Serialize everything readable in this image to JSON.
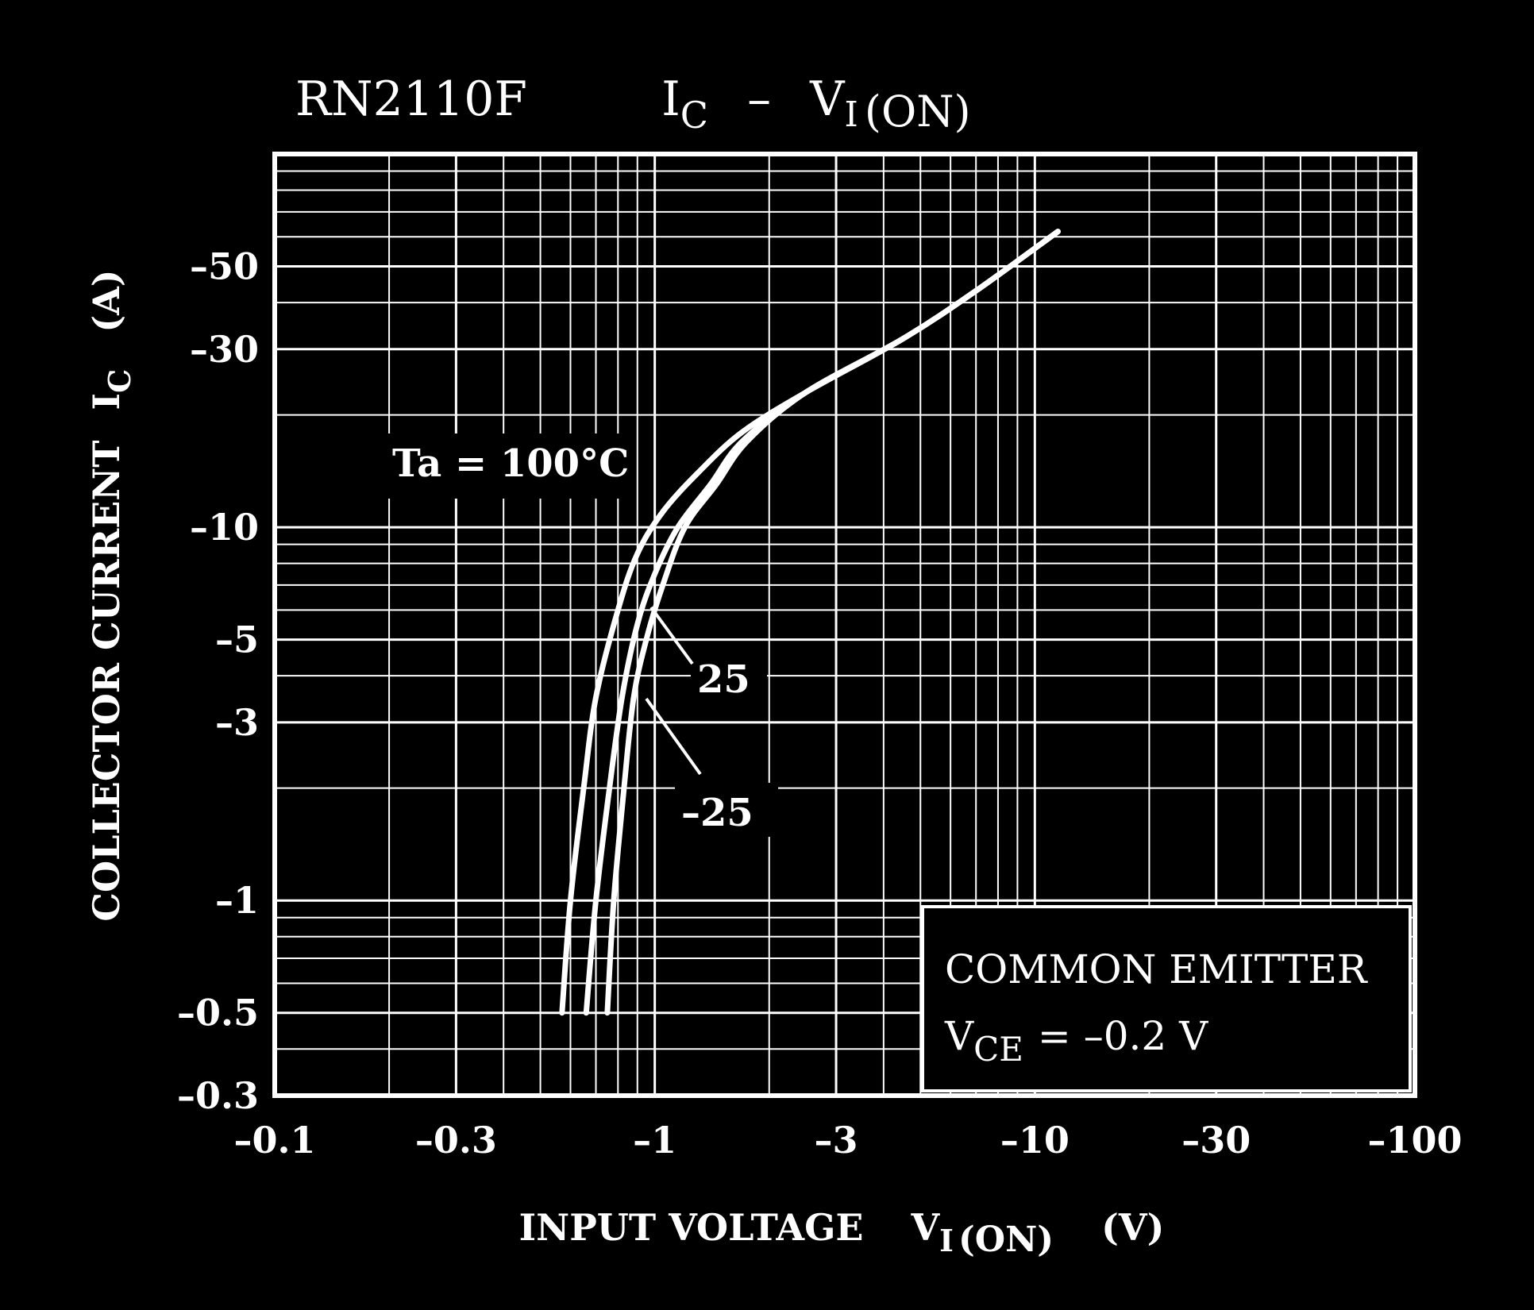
{
  "chart_data": {
    "type": "line",
    "title": {
      "part": "RN2110F",
      "symbol": "I",
      "symbol_sub": "C",
      "dash": "–",
      "symbol2": "V",
      "symbol2_sub": "I",
      "symbol2_suffix": "(ON)"
    },
    "xlabel": {
      "text": "INPUT  VOLTAGE",
      "symbol": "V",
      "sub": "I",
      "suffix": "(ON)",
      "unit": "(V)"
    },
    "ylabel": {
      "text": "COLLECTOR CURRENT",
      "symbol": "I",
      "sub": "C",
      "unit": "(A)"
    },
    "x_scale": "log",
    "y_scale": "log",
    "xlim": [
      -0.1,
      -100
    ],
    "ylim": [
      -0.3,
      -100
    ],
    "x_ticks": [
      -0.1,
      -0.3,
      -1,
      -3,
      -10,
      -30,
      -100
    ],
    "x_tick_labels": [
      "–0.1",
      "–0.3",
      "–1",
      "–3",
      "–10",
      "–30",
      "–100"
    ],
    "y_ticks": [
      -0.3,
      -0.5,
      -1,
      -3,
      -5,
      -10,
      -30,
      -50
    ],
    "y_tick_labels": [
      "–0.3",
      "–0.5",
      "–1",
      "–3",
      "–5",
      "–10",
      "–30",
      "–50"
    ],
    "grid": true,
    "series": [
      {
        "name": "100",
        "x": [
          -0.57,
          -0.6,
          -0.65,
          -0.7,
          -0.8,
          -0.9,
          -1.05,
          -1.3,
          -1.7,
          -2.5,
          -4.5,
          -7,
          -11.5
        ],
        "y": [
          -0.5,
          -1,
          -2,
          -3.5,
          -6,
          -8.5,
          -11,
          -14,
          -18,
          -23,
          -32,
          -43,
          -62
        ]
      },
      {
        "name": "25",
        "x": [
          -0.66,
          -0.7,
          -0.76,
          -0.82,
          -0.9,
          -1.0,
          -1.15,
          -1.4,
          -1.7,
          -2.5,
          -4.5,
          -7,
          -11.5
        ],
        "y": [
          -0.5,
          -1,
          -2,
          -3.5,
          -5.5,
          -7.5,
          -10,
          -13,
          -17,
          -23,
          -32,
          -43,
          -62
        ]
      },
      {
        "name": "-25",
        "x": [
          -0.75,
          -0.78,
          -0.83,
          -0.88,
          -0.95,
          -1.05,
          -1.2,
          -1.45,
          -1.75,
          -2.5,
          -4.5,
          -7,
          -11.5
        ],
        "y": [
          -0.5,
          -1,
          -2,
          -3.5,
          -5,
          -7,
          -10,
          -13,
          -17,
          -23,
          -32,
          -43,
          -62
        ]
      }
    ],
    "annotations": {
      "ta": "Ta = 100°C",
      "label_25": "25",
      "label_m25": "–25"
    },
    "note": {
      "line1": "COMMON EMITTER",
      "symbol": "V",
      "sub": "CE",
      "value": "=  –0.2 V"
    },
    "colors": {
      "background": "#000000",
      "foreground": "#ffffff"
    }
  }
}
